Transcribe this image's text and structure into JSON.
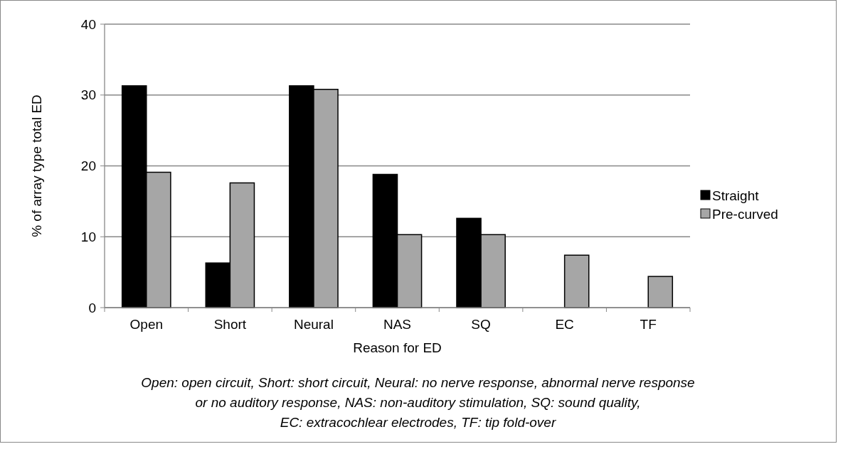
{
  "chart_data": {
    "type": "bar",
    "xlabel": "Reason for ED",
    "ylabel": "% of array type total ED",
    "categories": [
      "Open",
      "Short",
      "Neural",
      "NAS",
      "SQ",
      "EC",
      "TF"
    ],
    "series": [
      {
        "name": "Straight",
        "color": "#000000",
        "values": [
          31.3,
          6.3,
          31.3,
          18.8,
          12.6,
          0,
          0
        ]
      },
      {
        "name": "Pre-curved",
        "color": "#a6a6a6",
        "values": [
          19.1,
          17.6,
          30.8,
          10.3,
          10.3,
          7.4,
          4.4
        ]
      }
    ],
    "ylim": [
      0,
      40
    ],
    "yticks": [
      0,
      10,
      20,
      30,
      40
    ],
    "grid": "y",
    "legend": "right",
    "annotations": [
      "Open: open circuit, Short: short circuit, Neural: no nerve response, abnormal nerve response",
      "or no auditory response, NAS: non-auditory stimulation, SQ: sound quality,",
      "EC: extracochlear electrodes, TF: tip fold-over"
    ]
  }
}
